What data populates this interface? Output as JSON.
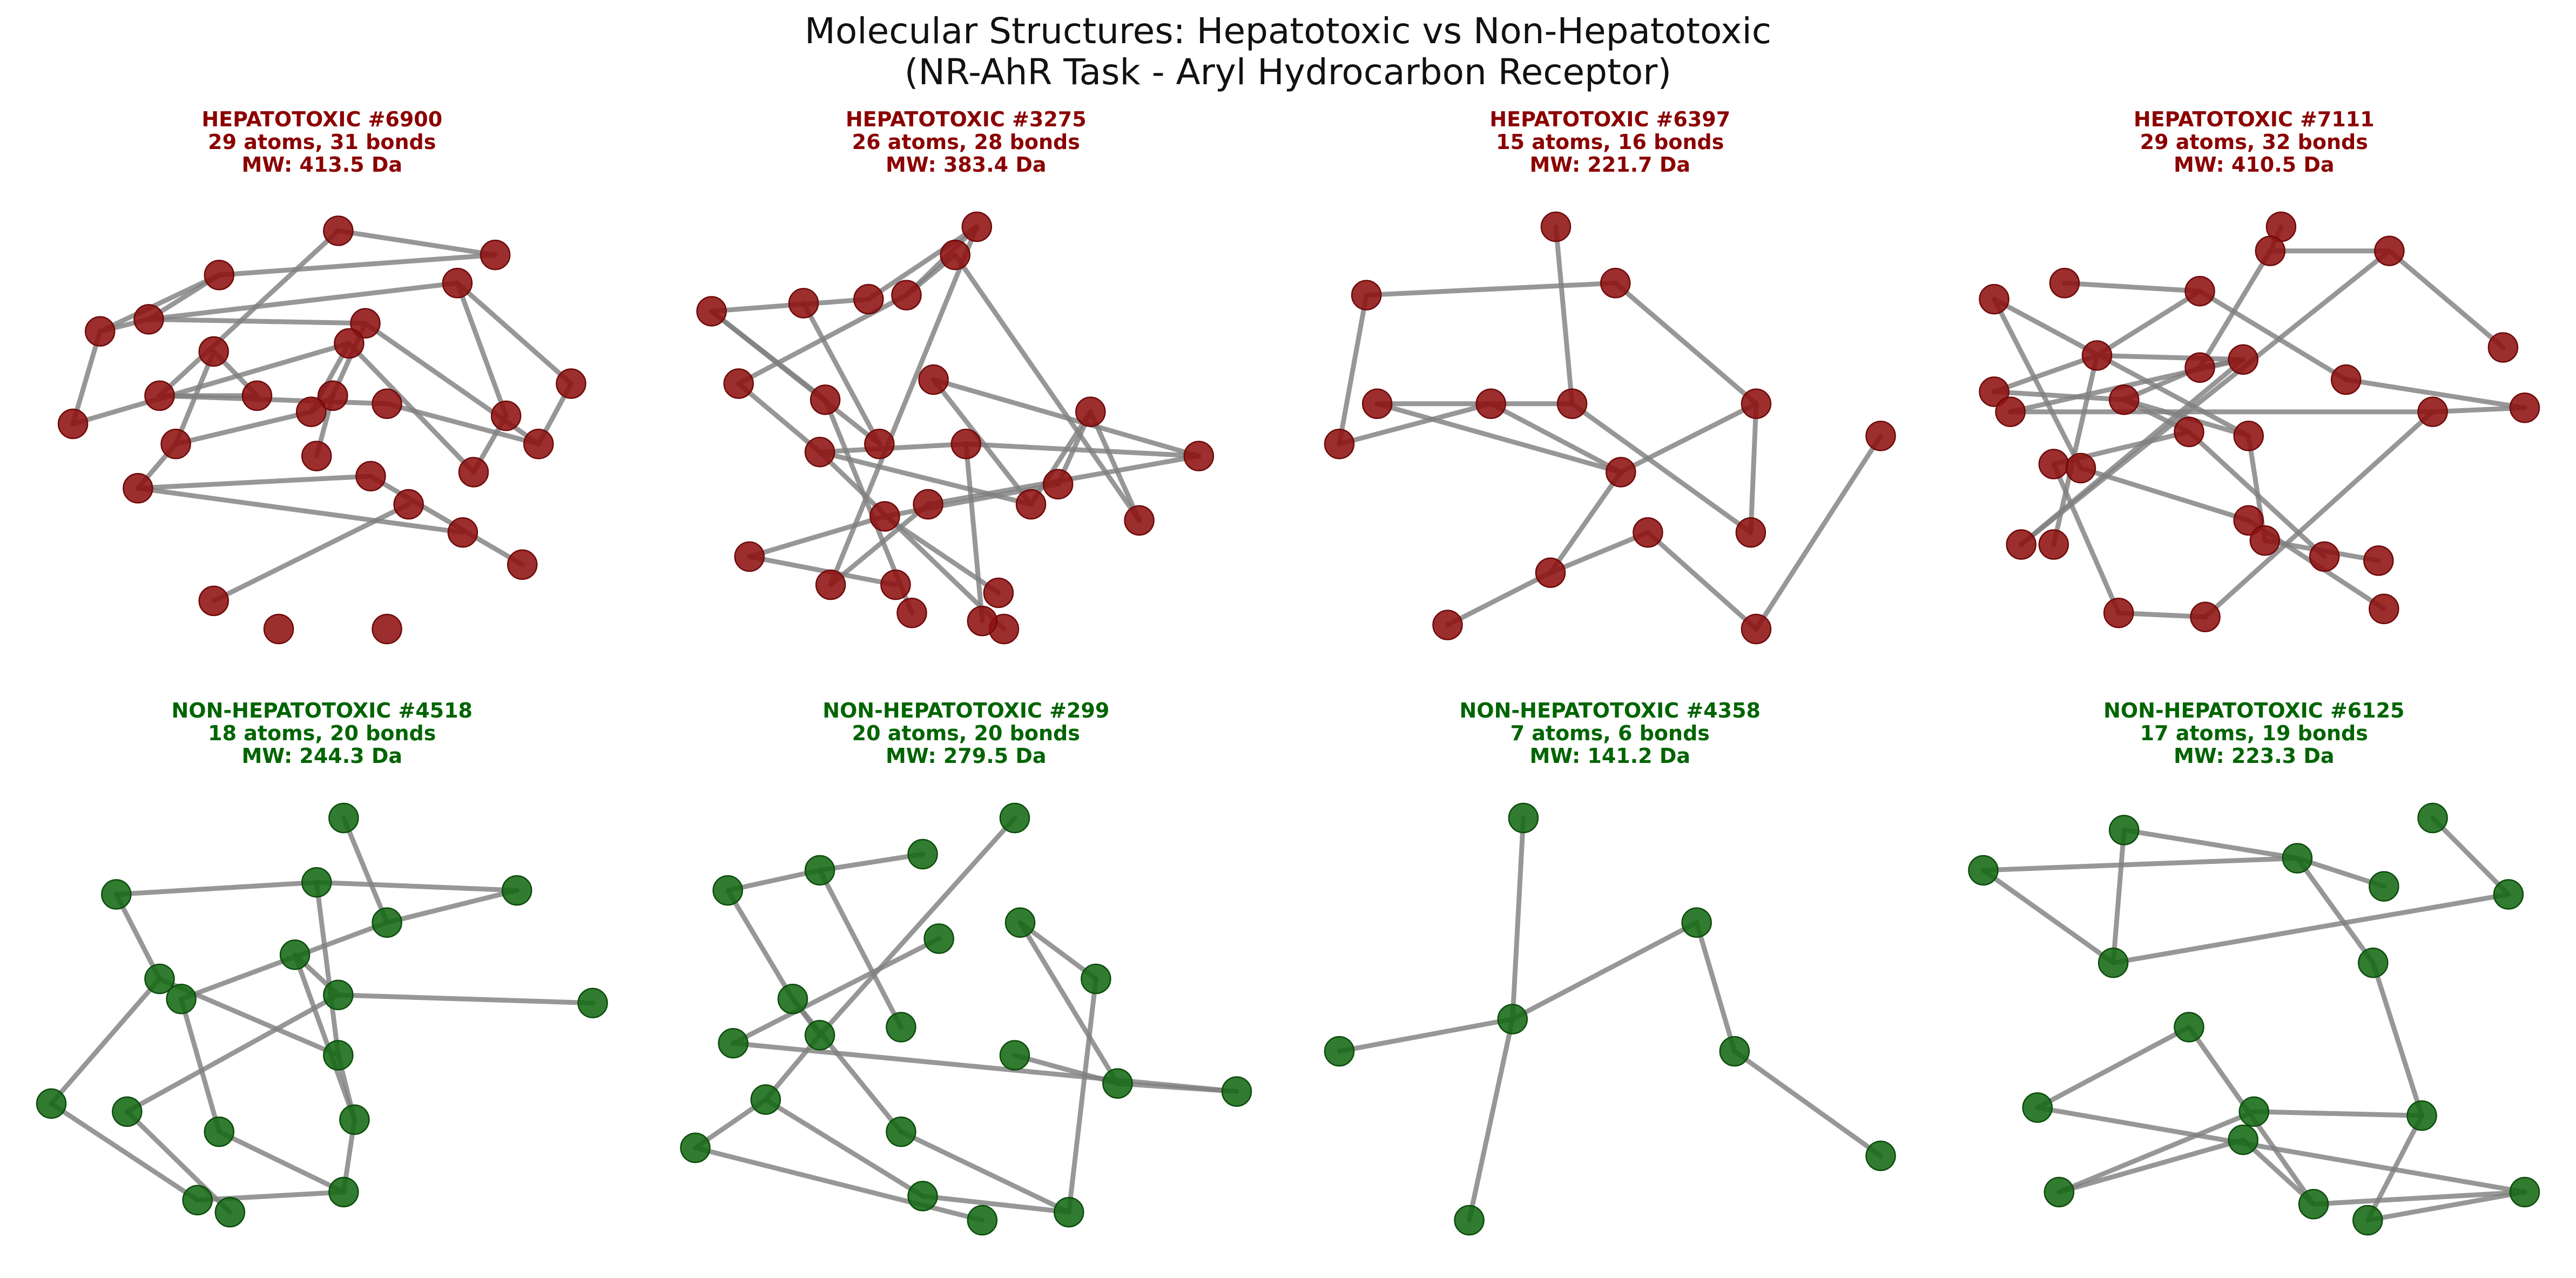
{
  "figure": {
    "title_line1": "Molecular Structures: Hepatotoxic vs Non-Hepatotoxic",
    "title_line2": "(NR-AhR Task - Aryl Hydrocarbon Receptor)"
  },
  "colors": {
    "hepatotoxic": "#8b0000",
    "non_hepatotoxic": "#006400",
    "bond": "#808080"
  },
  "panels": [
    {
      "class": "hepatotoxic",
      "label": "HEPATOTOXIC #6900",
      "counts": "29 atoms, 31 bonds",
      "mw": "MW: 413.5 Da",
      "atoms": [
        [
          0.53,
          0.99
        ],
        [
          0.31,
          0.88
        ],
        [
          0.82,
          0.93
        ],
        [
          0.09,
          0.74
        ],
        [
          0.18,
          0.77
        ],
        [
          0.75,
          0.86
        ],
        [
          0.96,
          0.61
        ],
        [
          0.58,
          0.76
        ],
        [
          0.04,
          0.51
        ],
        [
          0.3,
          0.69
        ],
        [
          0.52,
          0.58
        ],
        [
          0.55,
          0.71
        ],
        [
          0.2,
          0.58
        ],
        [
          0.23,
          0.46
        ],
        [
          0.16,
          0.35
        ],
        [
          0.38,
          0.58
        ],
        [
          0.48,
          0.54
        ],
        [
          0.62,
          0.56
        ],
        [
          0.84,
          0.53
        ],
        [
          0.9,
          0.46
        ],
        [
          0.78,
          0.39
        ],
        [
          0.49,
          0.43
        ],
        [
          0.59,
          0.38
        ],
        [
          0.66,
          0.31
        ],
        [
          0.76,
          0.24
        ],
        [
          0.87,
          0.16
        ],
        [
          0.3,
          0.07
        ],
        [
          0.42,
          0.0
        ],
        [
          0.62,
          0.0
        ]
      ],
      "bonds": [
        [
          0,
          2
        ],
        [
          0,
          12
        ],
        [
          1,
          3
        ],
        [
          1,
          2
        ],
        [
          1,
          4
        ],
        [
          3,
          4
        ],
        [
          3,
          8
        ],
        [
          4,
          5
        ],
        [
          4,
          7
        ],
        [
          5,
          6
        ],
        [
          5,
          18
        ],
        [
          6,
          19
        ],
        [
          7,
          10
        ],
        [
          7,
          19
        ],
        [
          8,
          11
        ],
        [
          9,
          13
        ],
        [
          9,
          15
        ],
        [
          10,
          16
        ],
        [
          10,
          21
        ],
        [
          11,
          20
        ],
        [
          11,
          16
        ],
        [
          12,
          15
        ],
        [
          12,
          17
        ],
        [
          13,
          14
        ],
        [
          13,
          16
        ],
        [
          14,
          22
        ],
        [
          14,
          24
        ],
        [
          17,
          19
        ],
        [
          18,
          20
        ],
        [
          22,
          25
        ],
        [
          23,
          26
        ]
      ]
    },
    {
      "class": "hepatotoxic",
      "label": "HEPATOTOXIC #3275",
      "counts": "26 atoms, 28 bonds",
      "mw": "MW: 383.4 Da",
      "atoms": [
        [
          0.52,
          1.0
        ],
        [
          0.39,
          0.83
        ],
        [
          0.32,
          0.82
        ],
        [
          0.48,
          0.93
        ],
        [
          0.03,
          0.79
        ],
        [
          0.08,
          0.61
        ],
        [
          0.24,
          0.57
        ],
        [
          0.23,
          0.44
        ],
        [
          0.34,
          0.46
        ],
        [
          0.5,
          0.46
        ],
        [
          0.62,
          0.31
        ],
        [
          0.57,
          0.0
        ],
        [
          0.2,
          0.81
        ],
        [
          0.44,
          0.62
        ],
        [
          0.73,
          0.54
        ],
        [
          0.93,
          0.43
        ],
        [
          0.82,
          0.27
        ],
        [
          0.67,
          0.36
        ],
        [
          0.43,
          0.31
        ],
        [
          0.35,
          0.28
        ],
        [
          0.1,
          0.18
        ],
        [
          0.25,
          0.11
        ],
        [
          0.56,
          0.09
        ],
        [
          0.37,
          0.11
        ],
        [
          0.4,
          0.04
        ],
        [
          0.53,
          0.02
        ]
      ],
      "bonds": [
        [
          0,
          2
        ],
        [
          0,
          1
        ],
        [
          1,
          3
        ],
        [
          2,
          4
        ],
        [
          1,
          5
        ],
        [
          4,
          8
        ],
        [
          4,
          6
        ],
        [
          5,
          7
        ],
        [
          7,
          9
        ],
        [
          7,
          10
        ],
        [
          7,
          11
        ],
        [
          8,
          12
        ],
        [
          10,
          13
        ],
        [
          10,
          14
        ],
        [
          9,
          15
        ],
        [
          13,
          15
        ],
        [
          14,
          16
        ],
        [
          14,
          17
        ],
        [
          15,
          18
        ],
        [
          17,
          19
        ],
        [
          19,
          20
        ],
        [
          18,
          21
        ],
        [
          19,
          22
        ],
        [
          20,
          23
        ],
        [
          6,
          24
        ],
        [
          9,
          25
        ],
        [
          21,
          0
        ],
        [
          3,
          16
        ]
      ]
    },
    {
      "class": "hepatotoxic",
      "label": "HEPATOTOXIC #6397",
      "counts": "15 atoms, 16 bonds",
      "mw": "MW: 221.7 Da",
      "atoms": [
        [
          0.4,
          1.0
        ],
        [
          0.05,
          0.83
        ],
        [
          0.51,
          0.86
        ],
        [
          0.0,
          0.46
        ],
        [
          0.07,
          0.56
        ],
        [
          0.28,
          0.56
        ],
        [
          0.43,
          0.56
        ],
        [
          0.77,
          0.56
        ],
        [
          1.0,
          0.48
        ],
        [
          0.52,
          0.39
        ],
        [
          0.57,
          0.24
        ],
        [
          0.76,
          0.24
        ],
        [
          0.39,
          0.14
        ],
        [
          0.2,
          0.01
        ],
        [
          0.77,
          0.0
        ]
      ],
      "bonds": [
        [
          0,
          6
        ],
        [
          1,
          2
        ],
        [
          1,
          3
        ],
        [
          2,
          7
        ],
        [
          3,
          5
        ],
        [
          4,
          6
        ],
        [
          4,
          9
        ],
        [
          5,
          9
        ],
        [
          6,
          11
        ],
        [
          7,
          11
        ],
        [
          7,
          9
        ],
        [
          9,
          12
        ],
        [
          10,
          12
        ],
        [
          10,
          14
        ],
        [
          12,
          13
        ],
        [
          8,
          14
        ]
      ]
    },
    {
      "class": "hepatotoxic",
      "label": "HEPATOTOXIC #7111",
      "counts": "29 atoms, 32 bonds",
      "mw": "MW: 410.5 Da",
      "atoms": [
        [
          0.55,
          1.0
        ],
        [
          0.53,
          0.94
        ],
        [
          0.75,
          0.94
        ],
        [
          0.15,
          0.86
        ],
        [
          0.4,
          0.84
        ],
        [
          0.02,
          0.82
        ],
        [
          0.96,
          0.7
        ],
        [
          0.21,
          0.68
        ],
        [
          0.4,
          0.65
        ],
        [
          0.48,
          0.67
        ],
        [
          0.67,
          0.62
        ],
        [
          0.02,
          0.59
        ],
        [
          0.05,
          0.54
        ],
        [
          0.26,
          0.57
        ],
        [
          1.0,
          0.55
        ],
        [
          0.83,
          0.54
        ],
        [
          0.38,
          0.49
        ],
        [
          0.49,
          0.48
        ],
        [
          0.13,
          0.41
        ],
        [
          0.18,
          0.4
        ],
        [
          0.49,
          0.27
        ],
        [
          0.52,
          0.22
        ],
        [
          0.07,
          0.21
        ],
        [
          0.13,
          0.21
        ],
        [
          0.63,
          0.18
        ],
        [
          0.73,
          0.17
        ],
        [
          0.25,
          0.04
        ],
        [
          0.41,
          0.03
        ],
        [
          0.74,
          0.05
        ]
      ],
      "bonds": [
        [
          0,
          1
        ],
        [
          1,
          8
        ],
        [
          1,
          2
        ],
        [
          2,
          6
        ],
        [
          3,
          4
        ],
        [
          4,
          7
        ],
        [
          4,
          10
        ],
        [
          5,
          19
        ],
        [
          5,
          17
        ],
        [
          7,
          11
        ],
        [
          7,
          9
        ],
        [
          7,
          23
        ],
        [
          8,
          13
        ],
        [
          8,
          9
        ],
        [
          9,
          12
        ],
        [
          9,
          22
        ],
        [
          10,
          14
        ],
        [
          11,
          13
        ],
        [
          13,
          16
        ],
        [
          13,
          17
        ],
        [
          14,
          15
        ],
        [
          16,
          18
        ],
        [
          16,
          24
        ],
        [
          17,
          21
        ],
        [
          18,
          26
        ],
        [
          19,
          20
        ],
        [
          20,
          28
        ],
        [
          21,
          25
        ],
        [
          15,
          27
        ],
        [
          27,
          26
        ],
        [
          2,
          22
        ],
        [
          12,
          15
        ]
      ]
    },
    {
      "class": "non_hepatotoxic",
      "label": "NON-HEPATOTOXIC #4518",
      "counts": "18 atoms, 20 bonds",
      "mw": "MW: 244.3 Da",
      "atoms": [
        [
          0.54,
          1.0
        ],
        [
          0.12,
          0.81
        ],
        [
          0.49,
          0.84
        ],
        [
          0.86,
          0.82
        ],
        [
          0.62,
          0.74
        ],
        [
          0.45,
          0.66
        ],
        [
          0.2,
          0.6
        ],
        [
          0.24,
          0.55
        ],
        [
          0.53,
          0.56
        ],
        [
          1.0,
          0.54
        ],
        [
          0.53,
          0.41
        ],
        [
          0.0,
          0.29
        ],
        [
          0.14,
          0.27
        ],
        [
          0.31,
          0.22
        ],
        [
          0.56,
          0.25
        ],
        [
          0.27,
          0.05
        ],
        [
          0.54,
          0.07
        ],
        [
          0.33,
          0.02
        ]
      ],
      "bonds": [
        [
          0,
          4
        ],
        [
          1,
          2
        ],
        [
          1,
          6
        ],
        [
          2,
          3
        ],
        [
          3,
          4
        ],
        [
          2,
          10
        ],
        [
          4,
          7
        ],
        [
          5,
          8
        ],
        [
          5,
          14
        ],
        [
          6,
          11
        ],
        [
          6,
          10
        ],
        [
          7,
          13
        ],
        [
          8,
          9
        ],
        [
          8,
          12
        ],
        [
          11,
          15
        ],
        [
          12,
          17
        ],
        [
          13,
          16
        ],
        [
          14,
          16
        ],
        [
          15,
          16
        ],
        [
          10,
          14
        ]
      ]
    },
    {
      "class": "non_hepatotoxic",
      "label": "NON-HEPATOTOXIC #299",
      "counts": "20 atoms, 20 bonds",
      "mw": "MW: 279.5 Da",
      "atoms": [
        [
          0.59,
          1.0
        ],
        [
          0.42,
          0.91
        ],
        [
          0.06,
          0.82
        ],
        [
          0.23,
          0.87
        ],
        [
          0.45,
          0.7
        ],
        [
          0.6,
          0.74
        ],
        [
          0.74,
          0.6
        ],
        [
          0.18,
          0.55
        ],
        [
          0.23,
          0.46
        ],
        [
          0.38,
          0.48
        ],
        [
          0.07,
          0.44
        ],
        [
          0.59,
          0.41
        ],
        [
          0.78,
          0.34
        ],
        [
          1.0,
          0.32
        ],
        [
          0.13,
          0.3
        ],
        [
          0.38,
          0.22
        ],
        [
          0.0,
          0.18
        ],
        [
          0.42,
          0.06
        ],
        [
          0.53,
          0.0
        ],
        [
          0.69,
          0.02
        ]
      ],
      "bonds": [
        [
          0,
          8
        ],
        [
          1,
          3
        ],
        [
          2,
          3
        ],
        [
          2,
          7
        ],
        [
          3,
          9
        ],
        [
          4,
          10
        ],
        [
          5,
          6
        ],
        [
          5,
          12
        ],
        [
          6,
          19
        ],
        [
          7,
          15
        ],
        [
          7,
          8
        ],
        [
          8,
          14
        ],
        [
          10,
          13
        ],
        [
          11,
          12
        ],
        [
          12,
          13
        ],
        [
          14,
          17
        ],
        [
          14,
          16
        ],
        [
          15,
          19
        ],
        [
          17,
          19
        ],
        [
          16,
          18
        ]
      ]
    },
    {
      "class": "non_hepatotoxic",
      "label": "NON-HEPATOTOXIC #4358",
      "counts": "7 atoms, 6 bonds",
      "mw": "MW: 141.2 Da",
      "atoms": [
        [
          0.34,
          1.0
        ],
        [
          0.66,
          0.74
        ],
        [
          0.32,
          0.5
        ],
        [
          0.0,
          0.42
        ],
        [
          0.73,
          0.42
        ],
        [
          1.0,
          0.16
        ],
        [
          0.24,
          0.0
        ]
      ],
      "bonds": [
        [
          0,
          2
        ],
        [
          1,
          2
        ],
        [
          2,
          3
        ],
        [
          2,
          6
        ],
        [
          1,
          4
        ],
        [
          4,
          5
        ]
      ]
    },
    {
      "class": "non_hepatotoxic",
      "label": "NON-HEPATOTOXIC #6125",
      "counts": "17 atoms, 19 bonds",
      "mw": "MW: 223.3 Da",
      "atoms": [
        [
          0.83,
          1.0
        ],
        [
          0.26,
          0.97
        ],
        [
          0.58,
          0.9
        ],
        [
          0.74,
          0.83
        ],
        [
          0.0,
          0.87
        ],
        [
          0.97,
          0.81
        ],
        [
          0.24,
          0.64
        ],
        [
          0.72,
          0.64
        ],
        [
          0.38,
          0.48
        ],
        [
          0.1,
          0.28
        ],
        [
          0.5,
          0.27
        ],
        [
          0.48,
          0.2
        ],
        [
          0.81,
          0.26
        ],
        [
          0.14,
          0.07
        ],
        [
          0.61,
          0.04
        ],
        [
          0.71,
          0.0
        ],
        [
          1.0,
          0.07
        ]
      ],
      "bonds": [
        [
          0,
          5
        ],
        [
          1,
          2
        ],
        [
          1,
          6
        ],
        [
          2,
          3
        ],
        [
          2,
          7
        ],
        [
          4,
          2
        ],
        [
          4,
          6
        ],
        [
          6,
          5
        ],
        [
          7,
          12
        ],
        [
          8,
          9
        ],
        [
          8,
          14
        ],
        [
          9,
          16
        ],
        [
          10,
          13
        ],
        [
          10,
          12
        ],
        [
          11,
          14
        ],
        [
          12,
          15
        ],
        [
          14,
          16
        ],
        [
          15,
          16
        ],
        [
          13,
          11
        ]
      ]
    }
  ]
}
